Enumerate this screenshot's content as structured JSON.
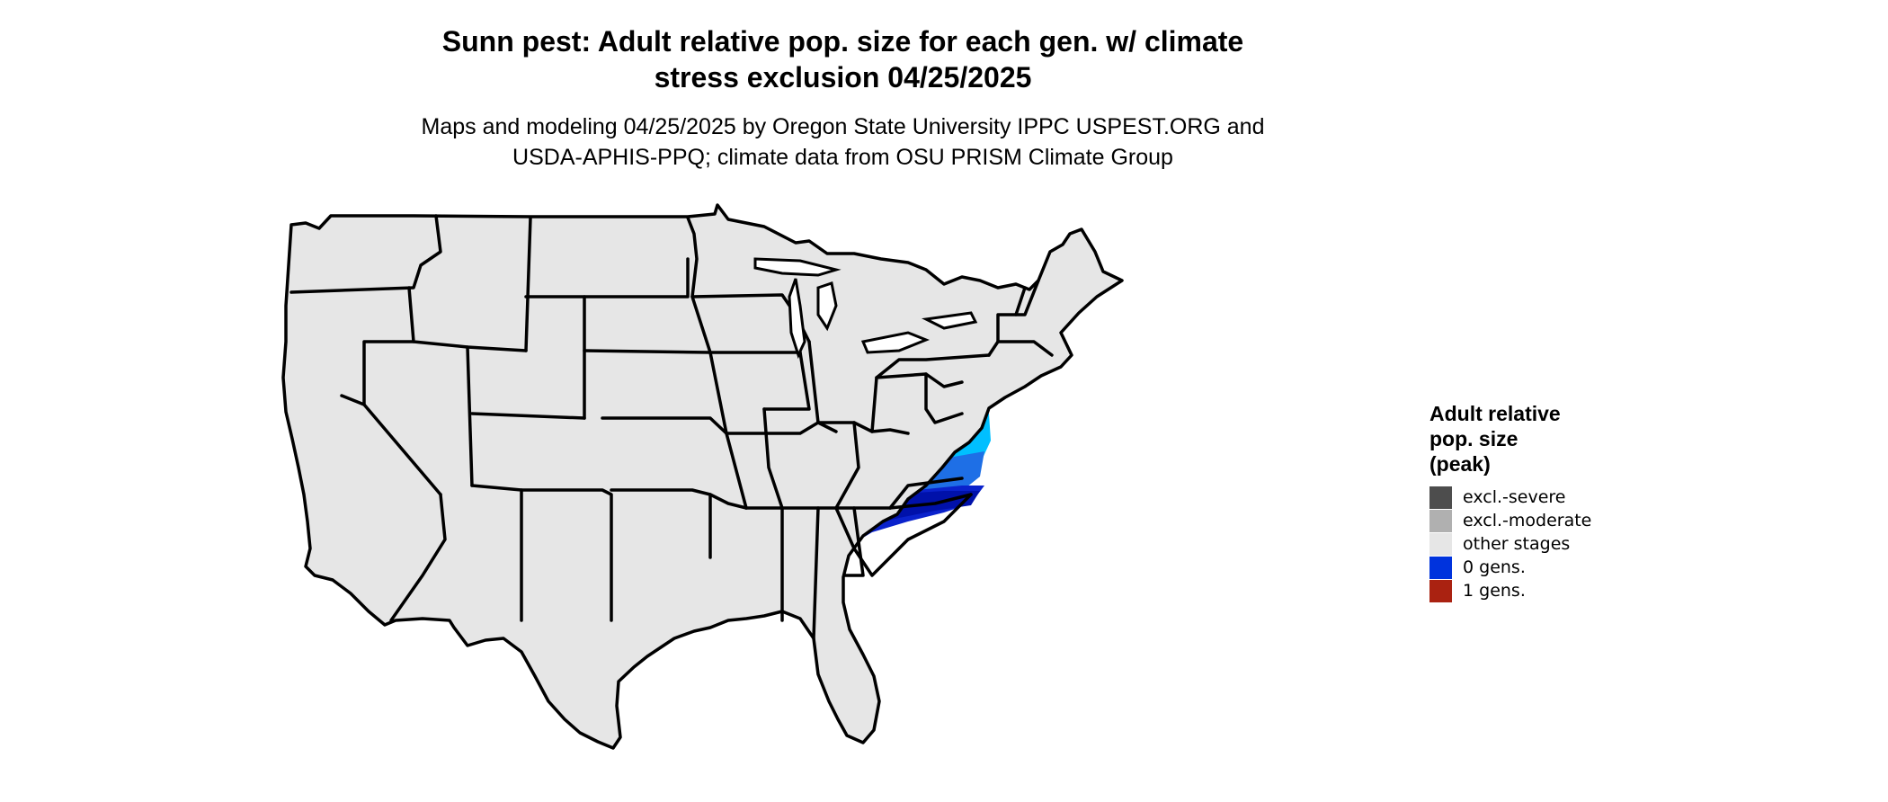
{
  "title_line1": "Sunn pest: Adult relative pop. size for each gen. w/ climate",
  "title_line2": "stress exclusion 04/25/2025",
  "subtitle_line1": "Maps and modeling 04/25/2025 by Oregon State University IPPC USPEST.ORG and",
  "subtitle_line2": "USDA-APHIS-PPQ; climate data from OSU PRISM Climate Group",
  "legend": {
    "title_lines": [
      "Adult relative",
      "pop. size",
      "(peak)"
    ],
    "items": [
      {
        "label": "excl.-severe",
        "color": "#4d4d4d"
      },
      {
        "label": "excl.-moderate",
        "color": "#b0b0b0"
      },
      {
        "label": "other stages",
        "color": "#e6e6e6"
      },
      {
        "label": "0 gens.",
        "color": "#0033dd"
      },
      {
        "label": "1 gens.",
        "color": "#aa2211"
      }
    ]
  },
  "map_colors": {
    "land": "#e6e6e6",
    "border": "#000000",
    "excl_severe": "#4d4d4d",
    "excl_moderate": "#b0b0b0",
    "light_blue": "#00bfff",
    "mid_blue": "#1e6fe6",
    "dark_blue": "#0a22cc",
    "deep_blue": "#0011aa"
  }
}
